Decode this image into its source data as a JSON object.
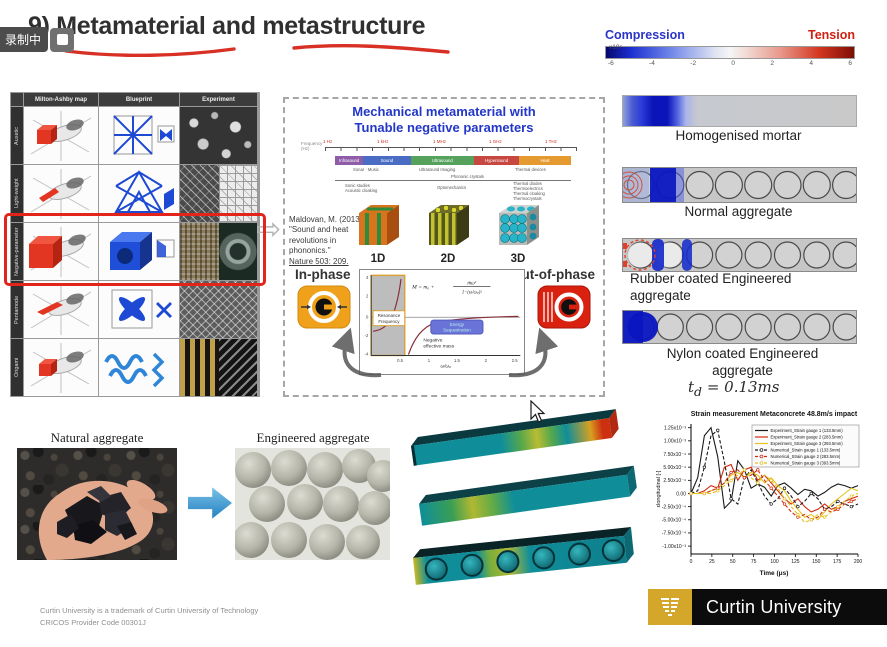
{
  "recording": {
    "badge": "录制中"
  },
  "slide": {
    "title": "9) Metamaterial and metastructure",
    "colorbar": {
      "left": "Compression",
      "right": "Tension",
      "scale": "x10⁷",
      "ticks": [
        "-6",
        "-4",
        "-2",
        "0",
        "2",
        "4",
        "6"
      ]
    },
    "matrix": {
      "columns": [
        "Milton-Ashby map",
        "Blueprint",
        "Experiment"
      ],
      "rows": [
        "Auxetic",
        "Light-weight",
        "Negative-parameter",
        "Pentamode",
        "Origami"
      ],
      "highlighted_row": "Negative-parameter"
    },
    "center": {
      "title1": "Mechanical metamaterial with",
      "title2": "Tunable negative parameters",
      "freq_label": "Frequency (Hz)",
      "freq_markers": [
        "1 Hz",
        "1 kHz",
        "1 MHz",
        "1 GHz",
        "1 THz"
      ],
      "bands": [
        {
          "label": "Infrasound",
          "color": "#8f5da8"
        },
        {
          "label": "Sound",
          "color": "#4a6cc2"
        },
        {
          "label": "Ultrasound",
          "color": "#56a25c"
        },
        {
          "label": "Hypersound",
          "color": "#c64840"
        },
        {
          "label": "Heat",
          "color": "#e59a2f"
        }
      ],
      "notes_top": [
        "Sonar · Music",
        "Ultrasound Imaging",
        "Thermal devices"
      ],
      "phononic": "Phononic crystals",
      "notes_bottom": [
        "Sonic studies",
        "Acoustic cloaking",
        "Optomechanics",
        "Thermal diodes",
        "Thermoelectrics",
        "Thermal cloaking",
        "Thermocrystals"
      ],
      "citation": [
        "Maldovan, M. (2013).",
        "\"Sound and heat",
        "revolutions in phononics.\"",
        "Nature 503: 209."
      ],
      "dims": [
        "1D",
        "2D",
        "3D"
      ],
      "in_phase": "In-phase",
      "out_phase": "Out-of-phase",
      "resonance1": "Resonance",
      "resonance2": "Frequency",
      "formula_prefix": "M = m₀ +",
      "formula_num": "m̄ω²",
      "formula_den": "1−(ω/ωₚ)²",
      "energy1": "Energy",
      "energy2": "Sequestration",
      "negmass1": "Negative",
      "negmass2": "effective mass",
      "graph_xlabel": "ω/ω₀",
      "graph_yticks": [
        "4",
        "2",
        "0",
        "-2",
        "-4"
      ],
      "graph_xticks": [
        "0.5",
        "1",
        "1.5",
        "2",
        "2.5"
      ]
    },
    "strips": [
      {
        "line1": "Homogenised mortar",
        "line2": ""
      },
      {
        "line1": "Normal aggregate",
        "line2": ""
      },
      {
        "line1": "Rubber coated Engineered",
        "line2": "aggregate"
      },
      {
        "line1": "Nylon coated Engineered",
        "line2": "aggregate"
      }
    ],
    "impact_time": {
      "base": "t",
      "sub": "d",
      "rest": " = 0.13ms"
    },
    "aggregates": {
      "natural": "Natural aggregate",
      "engineered": "Engineered aggregate"
    },
    "footer": {
      "line1": "Curtin University is a trademark of Curtin University of Technology",
      "line2": "CRICOS Provider Code 00301J"
    },
    "logo": {
      "text": "Curtin University"
    }
  },
  "chart_data": {
    "type": "line",
    "title": "Strain measurement Metaconcrete 48.8m/s impact",
    "xlabel": "Time (μs)",
    "ylabel": "εlongitudinal [-]",
    "y_unit": "10⁻³ strain",
    "xlim": [
      0,
      200
    ],
    "ylim": [
      -1.15,
      1.32
    ],
    "xticks": [
      0,
      25,
      50,
      75,
      100,
      125,
      150,
      175,
      200
    ],
    "yticks": [
      {
        "v": 1.25,
        "label": "1.25x10⁻³"
      },
      {
        "v": 1.0,
        "label": "1.00x10⁻³"
      },
      {
        "v": 0.75,
        "label": "7.50x10⁻⁴"
      },
      {
        "v": 0.5,
        "label": "5.00x10⁻⁴"
      },
      {
        "v": 0.25,
        "label": "2.50x10⁻⁴"
      },
      {
        "v": 0,
        "label": "0.00"
      },
      {
        "v": -0.25,
        "label": "-2.50x10⁻⁴"
      },
      {
        "v": -0.5,
        "label": "-5.00x10⁻⁴"
      },
      {
        "v": -0.75,
        "label": "-7.50x10⁻⁴"
      },
      {
        "v": -1.0,
        "label": "-1.00x10⁻³"
      }
    ],
    "x": [
      0,
      8,
      16,
      24,
      32,
      40,
      48,
      56,
      64,
      72,
      80,
      88,
      96,
      104,
      112,
      120,
      128,
      136,
      144,
      152,
      160,
      168,
      176,
      184,
      192,
      200
    ],
    "series": [
      {
        "name": "Experiment_Strain gauge 1 (133.5mm)",
        "color": "#1a1a1a",
        "style": "solid",
        "marker": "none",
        "values": [
          0,
          0.3,
          1.1,
          1.25,
          0.7,
          -0.28,
          -0.15,
          0.62,
          0.45,
          0.1,
          0.18,
          0.12,
          -0.05,
          0.15,
          0.2,
          0.1,
          -0.02,
          0.08,
          0.05,
          -0.05,
          0.02,
          0.12,
          0.18,
          0.15,
          0.1,
          0.15
        ]
      },
      {
        "name": "Experiment_Strain gauge 2 (283.5mm)",
        "color": "#d42a10",
        "style": "solid",
        "marker": "none",
        "values": [
          0,
          0,
          0.05,
          0.15,
          0.1,
          0.5,
          0.55,
          0.25,
          0.45,
          0.5,
          0.25,
          0.35,
          0.2,
          0.05,
          -0.1,
          -0.2,
          -0.1,
          -0.25,
          -0.35,
          -0.3,
          -0.2,
          -0.3,
          -0.25,
          -0.15,
          -0.1,
          -0.05
        ]
      },
      {
        "name": "Experiment_Strain gauge 3 (393.5mm)",
        "color": "#e3c320",
        "style": "solid",
        "marker": "none",
        "values": [
          0,
          0,
          0,
          0.05,
          0.1,
          0.2,
          0.35,
          0.4,
          0.3,
          0.4,
          0.35,
          0.2,
          0.3,
          0.15,
          0.05,
          -0.15,
          -0.3,
          -0.45,
          -0.4,
          -0.5,
          -0.35,
          -0.2,
          -0.1,
          0,
          0.1,
          0.05
        ]
      },
      {
        "name": "Numerical_Strain gauge 1 (133.5mm)",
        "color": "#1a1a1a",
        "style": "dashed",
        "marker": "circle",
        "values": [
          0,
          0.05,
          0.5,
          1.1,
          1.2,
          0.6,
          -0.1,
          -0.2,
          0.3,
          0.45,
          0.2,
          -0.05,
          -0.2,
          -0.1,
          0.1,
          -0.05,
          -0.25,
          -0.15,
          0,
          -0.1,
          -0.3,
          -0.25,
          -0.15,
          -0.2,
          -0.25,
          -0.2
        ]
      },
      {
        "name": "Numerical_Strain gauge 2 (283.5mm)",
        "color": "#d42a10",
        "style": "dashed",
        "marker": "circle",
        "values": [
          0,
          0,
          0,
          0.05,
          0.1,
          0.2,
          0.4,
          0.45,
          0.3,
          0.35,
          0.45,
          0.25,
          0.1,
          -0.05,
          -0.2,
          -0.35,
          -0.45,
          -0.4,
          -0.5,
          -0.45,
          -0.3,
          -0.35,
          -0.3,
          -0.2,
          -0.15,
          -0.1
        ]
      },
      {
        "name": "Numerical_Strain gauge 3 (393.5mm)",
        "color": "#e3c320",
        "style": "dashed",
        "marker": "circle",
        "values": [
          0,
          0,
          0,
          0,
          0.05,
          0.15,
          0.25,
          0.35,
          0.45,
          0.3,
          0.2,
          0.35,
          0.25,
          0.1,
          -0.1,
          -0.25,
          -0.4,
          -0.55,
          -0.5,
          -0.4,
          -0.45,
          -0.35,
          -0.25,
          -0.15,
          -0.05,
          0
        ]
      }
    ],
    "legend_position": "upper right",
    "grid": false
  }
}
